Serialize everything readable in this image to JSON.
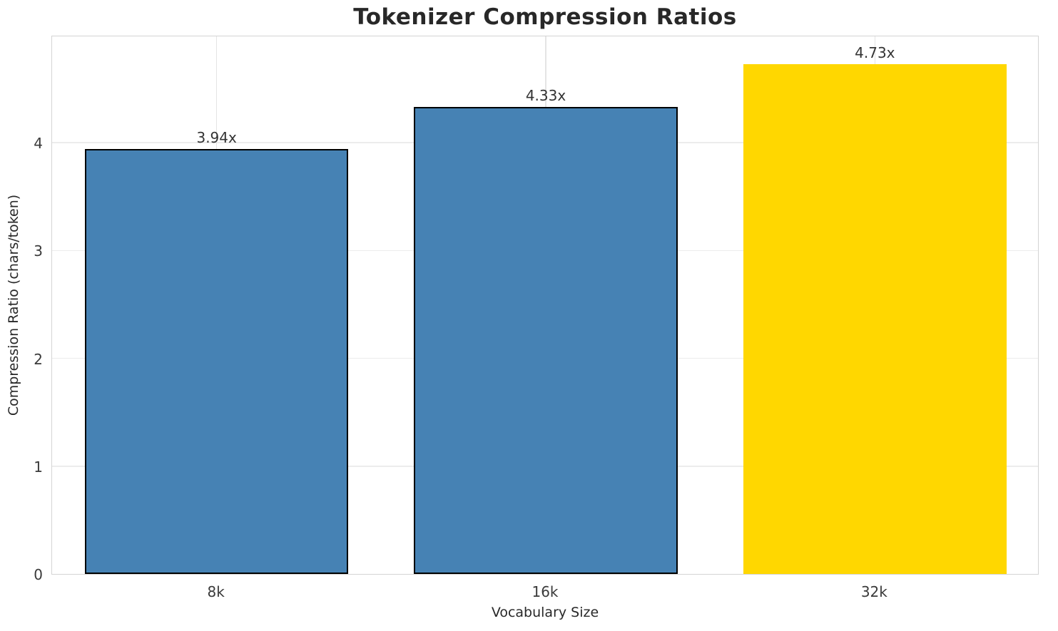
{
  "chart_data": {
    "type": "bar",
    "title": "Tokenizer Compression Ratios",
    "xlabel": "Vocabulary Size",
    "ylabel": "Compression Ratio (chars/token)",
    "categories": [
      "8k",
      "16k",
      "32k"
    ],
    "values": [
      3.94,
      4.33,
      4.73
    ],
    "value_labels": [
      "3.94x",
      "4.33x",
      "4.73x"
    ],
    "bar_colors": [
      "#4682B4",
      "#4682B4",
      "#FFD700"
    ],
    "bar_edge_colors": [
      "#000000",
      "#000000",
      "#FFD700"
    ],
    "highlight_index": 2,
    "ylim": [
      0,
      5
    ],
    "yticks": [
      0,
      1,
      2,
      3,
      4
    ],
    "grid": "both",
    "legend_position": "none",
    "colors": {
      "bar_default": "#4682B4",
      "bar_highlight": "#FFD700",
      "spine": "#d4d4d4",
      "grid_h": "#ececec",
      "grid_v": "#e4e4e4",
      "title_text": "#282828",
      "tick_text": "#3a3a3a"
    }
  }
}
